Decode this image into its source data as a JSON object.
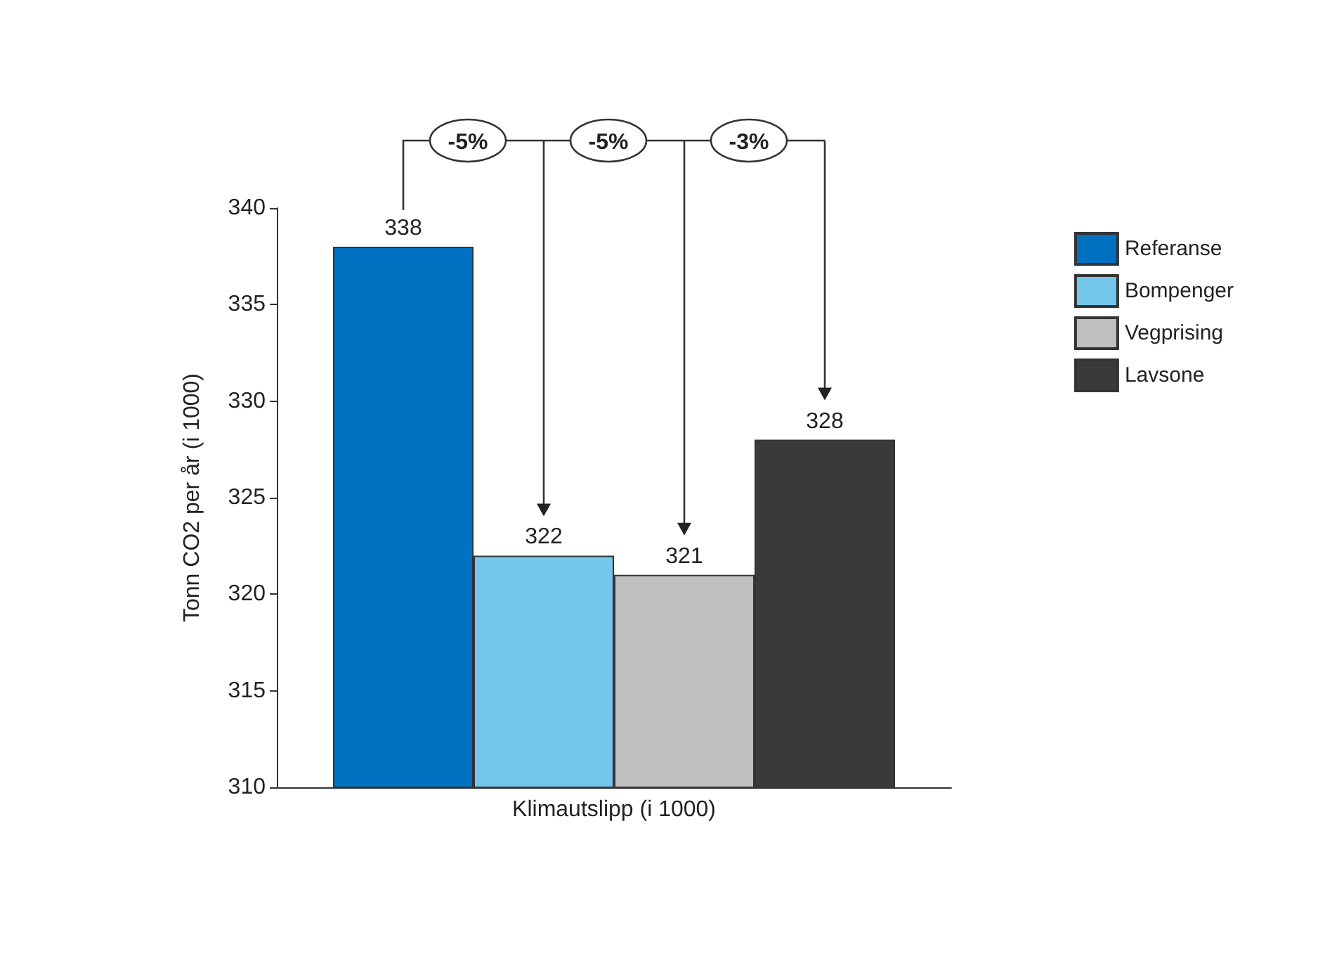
{
  "chart_data": {
    "type": "bar",
    "ylabel": "Tonn CO2 per år (i 1000)",
    "categories": [
      "Klimautslipp (i 1000)"
    ],
    "series": [
      {
        "name": "Referanse",
        "color": "#0070c0",
        "values": [
          338
        ]
      },
      {
        "name": "Bompenger",
        "color": "#74c7ea",
        "values": [
          322
        ]
      },
      {
        "name": "Vegprising",
        "color": "#c0c0c0",
        "values": [
          321
        ]
      },
      {
        "name": "Lavsone",
        "color": "#3a3a3a",
        "values": [
          328
        ]
      }
    ],
    "ylim": [
      310,
      340
    ],
    "yticks": [
      310,
      315,
      320,
      325,
      330,
      335,
      340
    ],
    "grid": false,
    "legend": "right",
    "data_labels": true,
    "annotations": [
      "-5%",
      "-5%",
      "-3%"
    ]
  }
}
